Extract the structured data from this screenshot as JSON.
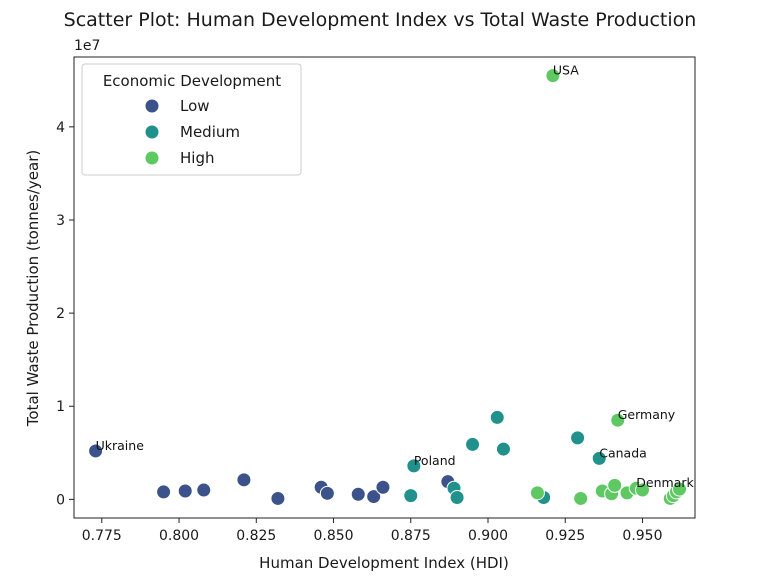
{
  "chart_data": {
    "type": "scatter",
    "title": "Scatter Plot: Human Development Index vs Total Waste Production",
    "xlabel": "Human Development Index (HDI)",
    "ylabel": "Total Waste Production (tonnes/year)",
    "y_offset_label": "1e7",
    "xlim": [
      0.766,
      0.967
    ],
    "ylim": [
      -2000000,
      47500000
    ],
    "xticks": [
      0.775,
      0.8,
      0.825,
      0.85,
      0.875,
      0.9,
      0.925,
      0.95
    ],
    "xtick_labels": [
      "0.775",
      "0.800",
      "0.825",
      "0.850",
      "0.875",
      "0.900",
      "0.925",
      "0.950"
    ],
    "yticks": [
      0,
      10000000,
      20000000,
      30000000,
      40000000
    ],
    "ytick_labels": [
      "0",
      "1",
      "2",
      "3",
      "4"
    ],
    "grid": false,
    "legend": {
      "title": "Economic Development",
      "placement": "top-left",
      "entries": [
        "Low",
        "Medium",
        "High"
      ]
    },
    "colors": {
      "Low": "#3b528b",
      "Medium": "#21918c",
      "High": "#5ec962"
    },
    "series": [
      {
        "name": "Low",
        "x": [
          0.773,
          0.795,
          0.802,
          0.808,
          0.821,
          0.832,
          0.846,
          0.848,
          0.858,
          0.863,
          0.866,
          0.887
        ],
        "y": [
          5200000,
          800000,
          900000,
          1000000,
          2100000,
          100000,
          1300000,
          650000,
          550000,
          300000,
          1300000,
          1900000
        ]
      },
      {
        "name": "Medium",
        "x": [
          0.875,
          0.876,
          0.889,
          0.89,
          0.895,
          0.903,
          0.905,
          0.918,
          0.929,
          0.936
        ],
        "y": [
          400000,
          3600000,
          1200000,
          200000,
          5900000,
          8800000,
          5400000,
          200000,
          6600000,
          4400000
        ]
      },
      {
        "name": "High",
        "x": [
          0.916,
          0.921,
          0.93,
          0.937,
          0.94,
          0.941,
          0.942,
          0.945,
          0.948,
          0.95,
          0.959,
          0.96,
          0.961,
          0.962
        ],
        "y": [
          700000,
          45500000,
          100000,
          900000,
          600000,
          1500000,
          8500000,
          700000,
          1200000,
          1000000,
          100000,
          400000,
          800000,
          1100000
        ]
      }
    ],
    "annotations": [
      {
        "text": "USA",
        "x": 0.921,
        "y": 45500000
      },
      {
        "text": "Ukraine",
        "x": 0.773,
        "y": 5200000
      },
      {
        "text": "Germany",
        "x": 0.942,
        "y": 8500000
      },
      {
        "text": "Canada",
        "x": 0.936,
        "y": 4400000
      },
      {
        "text": "Poland",
        "x": 0.876,
        "y": 3600000
      },
      {
        "text": "Denmark",
        "x": 0.948,
        "y": 1200000
      }
    ]
  }
}
